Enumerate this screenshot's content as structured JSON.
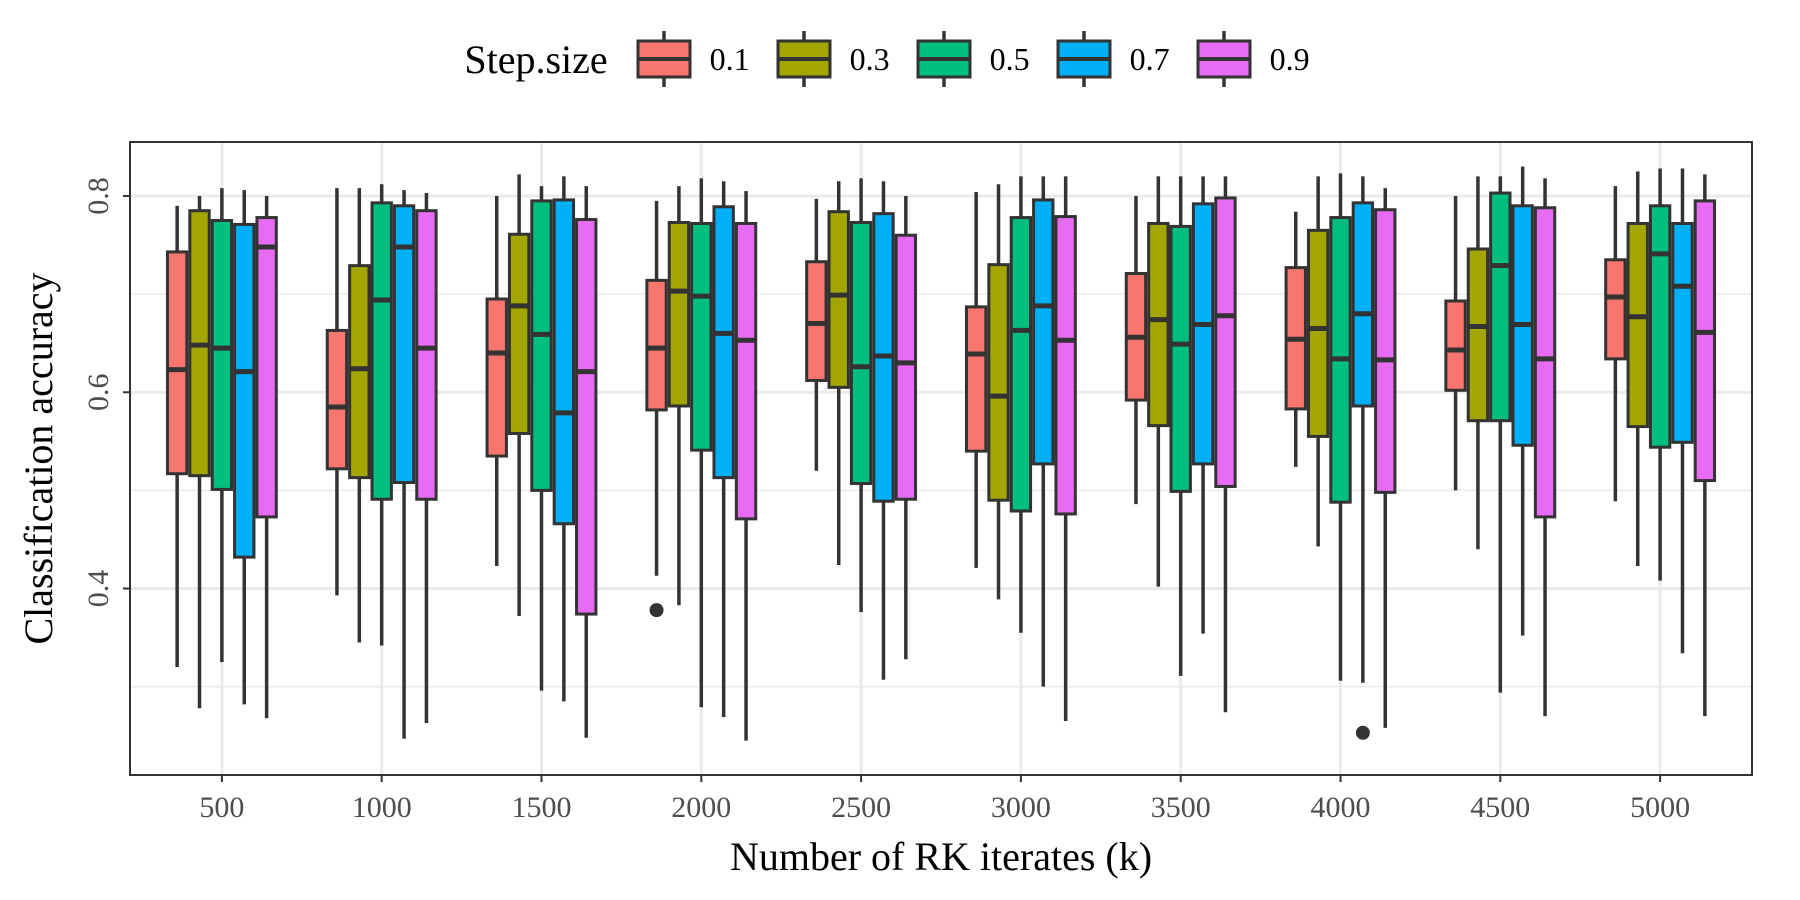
{
  "chart_data": {
    "type": "boxplot",
    "xlabel": "Number of RK iterates (k)",
    "ylabel": "Classification accuracy",
    "ylim": [
      0.21,
      0.855
    ],
    "yticks": [
      0.4,
      0.6,
      0.8
    ],
    "ytick_labels": [
      "0.4",
      "0.6",
      "0.8"
    ],
    "grid": true,
    "legend_position": "top",
    "legend_title": "Step.size",
    "categories": [
      "500",
      "1000",
      "1500",
      "2000",
      "2500",
      "3000",
      "3500",
      "4000",
      "4500",
      "5000"
    ],
    "series": [
      {
        "name": "0.1",
        "color": "#F8766D",
        "boxes": [
          {
            "whislo": 0.32,
            "q1": 0.517,
            "med": 0.623,
            "q3": 0.743,
            "whishi": 0.79
          },
          {
            "whislo": 0.393,
            "q1": 0.522,
            "med": 0.585,
            "q3": 0.663,
            "whishi": 0.808
          },
          {
            "whislo": 0.423,
            "q1": 0.535,
            "med": 0.64,
            "q3": 0.695,
            "whishi": 0.8
          },
          {
            "whislo": 0.413,
            "q1": 0.582,
            "med": 0.645,
            "q3": 0.714,
            "whishi": 0.795,
            "outliers": [
              0.378
            ]
          },
          {
            "whislo": 0.52,
            "q1": 0.612,
            "med": 0.67,
            "q3": 0.733,
            "whishi": 0.797
          },
          {
            "whislo": 0.421,
            "q1": 0.54,
            "med": 0.639,
            "q3": 0.687,
            "whishi": 0.804
          },
          {
            "whislo": 0.486,
            "q1": 0.592,
            "med": 0.656,
            "q3": 0.721,
            "whishi": 0.8
          },
          {
            "whislo": 0.524,
            "q1": 0.583,
            "med": 0.654,
            "q3": 0.727,
            "whishi": 0.784
          },
          {
            "whislo": 0.5,
            "q1": 0.602,
            "med": 0.643,
            "q3": 0.693,
            "whishi": 0.8
          },
          {
            "whislo": 0.489,
            "q1": 0.634,
            "med": 0.697,
            "q3": 0.735,
            "whishi": 0.81
          }
        ]
      },
      {
        "name": "0.3",
        "color": "#A3A500",
        "boxes": [
          {
            "whislo": 0.278,
            "q1": 0.515,
            "med": 0.648,
            "q3": 0.785,
            "whishi": 0.8
          },
          {
            "whislo": 0.345,
            "q1": 0.513,
            "med": 0.624,
            "q3": 0.729,
            "whishi": 0.808
          },
          {
            "whislo": 0.372,
            "q1": 0.558,
            "med": 0.688,
            "q3": 0.761,
            "whishi": 0.822
          },
          {
            "whislo": 0.383,
            "q1": 0.586,
            "med": 0.703,
            "q3": 0.773,
            "whishi": 0.81
          },
          {
            "whislo": 0.424,
            "q1": 0.605,
            "med": 0.699,
            "q3": 0.784,
            "whishi": 0.815
          },
          {
            "whislo": 0.389,
            "q1": 0.49,
            "med": 0.596,
            "q3": 0.73,
            "whishi": 0.812
          },
          {
            "whislo": 0.402,
            "q1": 0.566,
            "med": 0.674,
            "q3": 0.772,
            "whishi": 0.82
          },
          {
            "whislo": 0.443,
            "q1": 0.555,
            "med": 0.665,
            "q3": 0.765,
            "whishi": 0.82
          },
          {
            "whislo": 0.44,
            "q1": 0.571,
            "med": 0.667,
            "q3": 0.746,
            "whishi": 0.82
          },
          {
            "whislo": 0.423,
            "q1": 0.565,
            "med": 0.677,
            "q3": 0.772,
            "whishi": 0.825
          }
        ]
      },
      {
        "name": "0.5",
        "color": "#00BF7D",
        "boxes": [
          {
            "whislo": 0.325,
            "q1": 0.501,
            "med": 0.645,
            "q3": 0.775,
            "whishi": 0.808
          },
          {
            "whislo": 0.342,
            "q1": 0.491,
            "med": 0.694,
            "q3": 0.793,
            "whishi": 0.812
          },
          {
            "whislo": 0.296,
            "q1": 0.5,
            "med": 0.659,
            "q3": 0.795,
            "whishi": 0.81
          },
          {
            "whislo": 0.279,
            "q1": 0.541,
            "med": 0.698,
            "q3": 0.772,
            "whishi": 0.818
          },
          {
            "whislo": 0.376,
            "q1": 0.507,
            "med": 0.626,
            "q3": 0.773,
            "whishi": 0.818
          },
          {
            "whislo": 0.355,
            "q1": 0.479,
            "med": 0.663,
            "q3": 0.778,
            "whishi": 0.82
          },
          {
            "whislo": 0.311,
            "q1": 0.499,
            "med": 0.649,
            "q3": 0.769,
            "whishi": 0.82
          },
          {
            "whislo": 0.306,
            "q1": 0.488,
            "med": 0.634,
            "q3": 0.778,
            "whishi": 0.823
          },
          {
            "whislo": 0.294,
            "q1": 0.571,
            "med": 0.729,
            "q3": 0.803,
            "whishi": 0.82
          },
          {
            "whislo": 0.408,
            "q1": 0.544,
            "med": 0.741,
            "q3": 0.79,
            "whishi": 0.828
          }
        ]
      },
      {
        "name": "0.7",
        "color": "#00B0F6",
        "boxes": [
          {
            "whislo": 0.282,
            "q1": 0.432,
            "med": 0.621,
            "q3": 0.771,
            "whishi": 0.806
          },
          {
            "whislo": 0.247,
            "q1": 0.508,
            "med": 0.748,
            "q3": 0.79,
            "whishi": 0.806
          },
          {
            "whislo": 0.285,
            "q1": 0.466,
            "med": 0.579,
            "q3": 0.796,
            "whishi": 0.82
          },
          {
            "whislo": 0.269,
            "q1": 0.513,
            "med": 0.66,
            "q3": 0.789,
            "whishi": 0.815
          },
          {
            "whislo": 0.307,
            "q1": 0.489,
            "med": 0.637,
            "q3": 0.782,
            "whishi": 0.815
          },
          {
            "whislo": 0.3,
            "q1": 0.527,
            "med": 0.688,
            "q3": 0.796,
            "whishi": 0.82
          },
          {
            "whislo": 0.354,
            "q1": 0.527,
            "med": 0.669,
            "q3": 0.792,
            "whishi": 0.82
          },
          {
            "whislo": 0.304,
            "q1": 0.586,
            "med": 0.68,
            "q3": 0.793,
            "whishi": 0.82,
            "outliers": [
              0.253
            ]
          },
          {
            "whislo": 0.352,
            "q1": 0.546,
            "med": 0.669,
            "q3": 0.79,
            "whishi": 0.83
          },
          {
            "whislo": 0.334,
            "q1": 0.549,
            "med": 0.708,
            "q3": 0.772,
            "whishi": 0.828
          }
        ]
      },
      {
        "name": "0.9",
        "color": "#E76BF3",
        "boxes": [
          {
            "whislo": 0.268,
            "q1": 0.473,
            "med": 0.748,
            "q3": 0.778,
            "whishi": 0.8
          },
          {
            "whislo": 0.263,
            "q1": 0.491,
            "med": 0.645,
            "q3": 0.785,
            "whishi": 0.803
          },
          {
            "whislo": 0.248,
            "q1": 0.374,
            "med": 0.621,
            "q3": 0.776,
            "whishi": 0.81
          },
          {
            "whislo": 0.245,
            "q1": 0.471,
            "med": 0.653,
            "q3": 0.772,
            "whishi": 0.805
          },
          {
            "whislo": 0.328,
            "q1": 0.491,
            "med": 0.63,
            "q3": 0.76,
            "whishi": 0.8
          },
          {
            "whislo": 0.265,
            "q1": 0.476,
            "med": 0.653,
            "q3": 0.779,
            "whishi": 0.82
          },
          {
            "whislo": 0.274,
            "q1": 0.504,
            "med": 0.678,
            "q3": 0.798,
            "whishi": 0.82
          },
          {
            "whislo": 0.258,
            "q1": 0.498,
            "med": 0.633,
            "q3": 0.786,
            "whishi": 0.808
          },
          {
            "whislo": 0.27,
            "q1": 0.473,
            "med": 0.634,
            "q3": 0.788,
            "whishi": 0.818
          },
          {
            "whislo": 0.27,
            "q1": 0.51,
            "med": 0.661,
            "q3": 0.795,
            "whishi": 0.822
          }
        ]
      }
    ]
  }
}
